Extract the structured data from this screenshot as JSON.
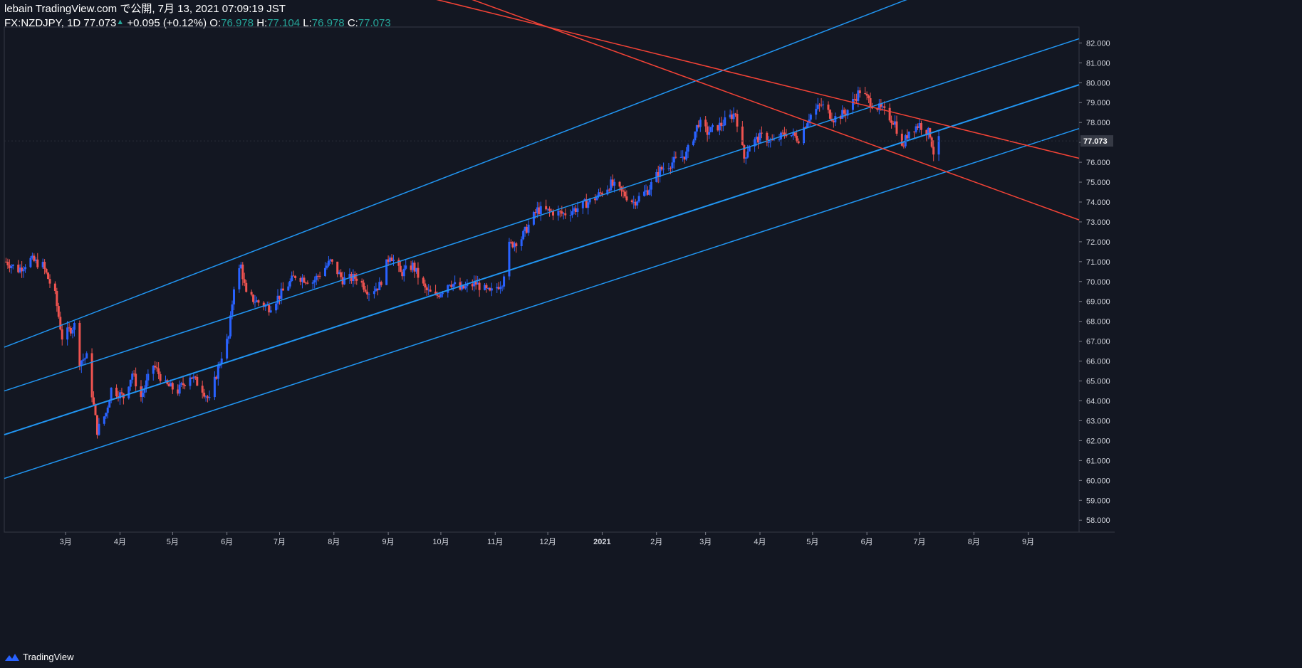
{
  "header": {
    "line1": "lebain TradingView.com で公開, 7月 13, 2021 07:09:19 JST",
    "symbol": "FX:NZDJPY, 1D 77.073",
    "change": "+0.095 (+0.12%)",
    "o_label": "O:",
    "o": "76.978",
    "h_label": "H:",
    "h": "77.104",
    "l_label": "L:",
    "l": "76.978",
    "c_label": "C:",
    "c": "77.073"
  },
  "footer": {
    "brand": "TradingView"
  },
  "colors": {
    "bg": "#131722",
    "up": "#2962ff",
    "down": "#ef5350",
    "channel": "#2196f3",
    "resist": "#f44336",
    "grid": "#2a2e39",
    "text": "#d1d4dc"
  },
  "chart_data": {
    "type": "candlestick",
    "title": "",
    "symbol": "FX:NZDJPY",
    "interval": "1D",
    "last_price": 77.073,
    "x_labels": [
      "3月",
      "4月",
      "5月",
      "6月",
      "7月",
      "8月",
      "9月",
      "10月",
      "11月",
      "12月",
      "2021",
      "2月",
      "3月",
      "4月",
      "5月",
      "6月",
      "7月",
      "8月",
      "9月"
    ],
    "x_label_dates": [
      "2020-03-01",
      "2020-04-01",
      "2020-05-01",
      "2020-06-01",
      "2020-07-01",
      "2020-08-01",
      "2020-09-01",
      "2020-10-01",
      "2020-11-01",
      "2020-12-01",
      "2021-01-01",
      "2021-02-01",
      "2021-03-01",
      "2021-04-01",
      "2021-05-01",
      "2021-06-01",
      "2021-07-01",
      "2021-08-01",
      "2021-09-01"
    ],
    "y_ticks": [
      "58.000",
      "59.000",
      "60.000",
      "61.000",
      "62.000",
      "63.000",
      "64.000",
      "65.000",
      "66.000",
      "67.000",
      "68.000",
      "69.000",
      "70.000",
      "71.000",
      "72.000",
      "73.000",
      "74.000",
      "75.000",
      "76.000",
      "77.000",
      "78.000",
      "79.000",
      "80.000",
      "81.000",
      "82.000"
    ],
    "ylim": [
      57.4,
      82.8
    ],
    "xlim": [
      "2020-01-26",
      "2021-09-30"
    ],
    "price_path": [
      [
        "2020-01-27",
        71.0
      ],
      [
        "2020-02-03",
        70.6
      ],
      [
        "2020-02-10",
        71.1
      ],
      [
        "2020-02-17",
        70.8
      ],
      [
        "2020-02-24",
        69.3
      ],
      [
        "2020-02-28",
        67.2
      ],
      [
        "2020-03-06",
        67.8
      ],
      [
        "2020-03-09",
        66.0
      ],
      [
        "2020-03-13",
        66.2
      ],
      [
        "2020-03-19",
        62.5
      ],
      [
        "2020-03-24",
        63.4
      ],
      [
        "2020-03-27",
        64.6
      ],
      [
        "2020-04-03",
        64.2
      ],
      [
        "2020-04-08",
        65.4
      ],
      [
        "2020-04-13",
        64.2
      ],
      [
        "2020-04-20",
        65.8
      ],
      [
        "2020-04-27",
        64.8
      ],
      [
        "2020-05-04",
        64.5
      ],
      [
        "2020-05-11",
        65.3
      ],
      [
        "2020-05-18",
        64.6
      ],
      [
        "2020-05-22",
        64.0
      ],
      [
        "2020-05-29",
        66.3
      ],
      [
        "2020-06-02",
        67.2
      ],
      [
        "2020-06-05",
        69.8
      ],
      [
        "2020-06-09",
        70.8
      ],
      [
        "2020-06-12",
        69.3
      ],
      [
        "2020-06-18",
        69.0
      ],
      [
        "2020-06-25",
        68.7
      ],
      [
        "2020-07-02",
        69.4
      ],
      [
        "2020-07-10",
        70.3
      ],
      [
        "2020-07-20",
        70.0
      ],
      [
        "2020-07-30",
        71.0
      ],
      [
        "2020-08-06",
        70.1
      ],
      [
        "2020-08-14",
        70.2
      ],
      [
        "2020-08-21",
        69.5
      ],
      [
        "2020-08-27",
        69.8
      ],
      [
        "2020-09-02",
        71.4
      ],
      [
        "2020-09-08",
        70.4
      ],
      [
        "2020-09-15",
        70.8
      ],
      [
        "2020-09-22",
        69.6
      ],
      [
        "2020-09-28",
        69.2
      ],
      [
        "2020-10-06",
        70.0
      ],
      [
        "2020-10-12",
        69.6
      ],
      [
        "2020-10-21",
        69.9
      ],
      [
        "2020-10-29",
        69.4
      ],
      [
        "2020-11-05",
        70.0
      ],
      [
        "2020-11-09",
        71.8
      ],
      [
        "2020-11-16",
        72.2
      ],
      [
        "2020-11-25",
        73.6
      ],
      [
        "2020-12-04",
        73.5
      ],
      [
        "2020-12-10",
        73.4
      ],
      [
        "2020-12-18",
        73.7
      ],
      [
        "2020-12-28",
        74.2
      ],
      [
        "2021-01-06",
        74.9
      ],
      [
        "2021-01-12",
        74.5
      ],
      [
        "2021-01-19",
        74.0
      ],
      [
        "2021-01-27",
        74.6
      ],
      [
        "2021-02-03",
        75.6
      ],
      [
        "2021-02-10",
        76.0
      ],
      [
        "2021-02-18",
        76.4
      ],
      [
        "2021-02-25",
        78.0
      ],
      [
        "2021-03-02",
        77.5
      ],
      [
        "2021-03-10",
        77.9
      ],
      [
        "2021-03-18",
        78.5
      ],
      [
        "2021-03-23",
        76.2
      ],
      [
        "2021-03-26",
        76.9
      ],
      [
        "2021-04-02",
        77.3
      ],
      [
        "2021-04-09",
        77.0
      ],
      [
        "2021-04-16",
        77.5
      ],
      [
        "2021-04-23",
        77.2
      ],
      [
        "2021-04-29",
        78.3
      ],
      [
        "2021-05-06",
        78.9
      ],
      [
        "2021-05-13",
        78.2
      ],
      [
        "2021-05-20",
        78.5
      ],
      [
        "2021-05-28",
        79.6
      ],
      [
        "2021-06-03",
        79.0
      ],
      [
        "2021-06-10",
        78.6
      ],
      [
        "2021-06-17",
        78.0
      ],
      [
        "2021-06-21",
        76.7
      ],
      [
        "2021-06-25",
        77.6
      ],
      [
        "2021-07-01",
        77.9
      ],
      [
        "2021-07-07",
        77.4
      ],
      [
        "2021-07-09",
        76.5
      ],
      [
        "2021-07-12",
        77.073
      ]
    ],
    "drawings": [
      {
        "name": "channel-upper",
        "color": "#2196f3",
        "points": [
          [
            "2020-01-26",
            66.7
          ],
          [
            "2021-07-12",
            84.8
          ]
        ]
      },
      {
        "name": "channel-mid-upper",
        "color": "#2196f3",
        "points": [
          [
            "2020-01-26",
            64.5
          ],
          [
            "2021-07-12",
            79.9
          ]
        ]
      },
      {
        "name": "channel-median",
        "color": "#2196f3",
        "points": [
          [
            "2020-01-26",
            62.3
          ],
          [
            "2021-07-12",
            77.6
          ]
        ]
      },
      {
        "name": "channel-lower",
        "color": "#2196f3",
        "points": [
          [
            "2020-01-26",
            60.1
          ],
          [
            "2021-07-12",
            75.4
          ]
        ]
      },
      {
        "name": "resistance-upper",
        "color": "#f44336",
        "points": [
          [
            "2020-12-01",
            82.8
          ],
          [
            "2021-09-30",
            76.2
          ]
        ]
      },
      {
        "name": "resistance-lower",
        "color": "#f44336",
        "points": [
          [
            "2020-12-01",
            82.8
          ],
          [
            "2021-09-30",
            73.1
          ]
        ]
      }
    ]
  }
}
